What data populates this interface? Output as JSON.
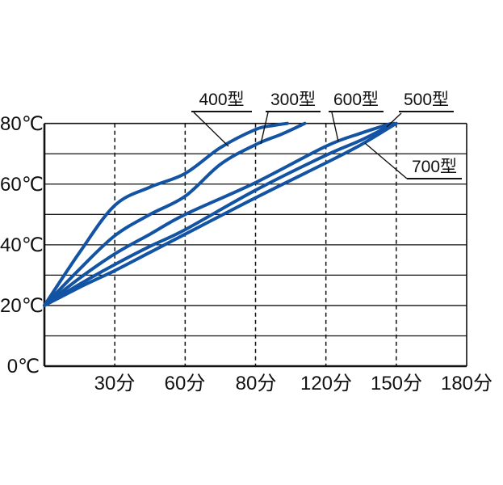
{
  "chart_data": {
    "type": "line",
    "title": "",
    "y_axis": {
      "unit": "℃",
      "tick_labels": [
        "0℃",
        "20℃",
        "40℃",
        "60℃",
        "80℃"
      ],
      "tick_values": [
        0,
        20,
        40,
        60,
        80
      ],
      "range": [
        0,
        80
      ],
      "gridline_step": 10,
      "gridline_style": "solid"
    },
    "x_axis": {
      "unit": "分",
      "tick_labels": [
        "30分",
        "60分",
        "80分",
        "120分",
        "150分",
        "180分"
      ],
      "tick_values": [
        30,
        60,
        80,
        120,
        150,
        180
      ],
      "axis_values": [
        0,
        30,
        60,
        80,
        120,
        150,
        180
      ],
      "spacing": "uniform-per-tick",
      "gridline_style": "dashed"
    },
    "series": [
      {
        "name": "400型",
        "points": [
          [
            0,
            20
          ],
          [
            15,
            37.5
          ],
          [
            30,
            53
          ],
          [
            45,
            59
          ],
          [
            60,
            63.5
          ],
          [
            70,
            72
          ],
          [
            80,
            78
          ],
          [
            90,
            79.3
          ],
          [
            98,
            80
          ]
        ]
      },
      {
        "name": "300型",
        "points": [
          [
            0,
            20
          ],
          [
            15,
            32
          ],
          [
            30,
            43
          ],
          [
            45,
            50
          ],
          [
            60,
            56
          ],
          [
            70,
            66.5
          ],
          [
            80,
            73
          ],
          [
            95,
            76.5
          ],
          [
            108,
            80
          ]
        ]
      },
      {
        "name": "600型",
        "points": [
          [
            0,
            20
          ],
          [
            15,
            29
          ],
          [
            30,
            37
          ],
          [
            45,
            43.5
          ],
          [
            60,
            50
          ],
          [
            80,
            60.5
          ],
          [
            120,
            72.5
          ],
          [
            135,
            76.8
          ],
          [
            148,
            80
          ]
        ]
      },
      {
        "name": "500型",
        "points": [
          [
            0,
            20
          ],
          [
            15,
            27
          ],
          [
            30,
            33.5
          ],
          [
            45,
            39.5
          ],
          [
            60,
            45
          ],
          [
            80,
            58
          ],
          [
            120,
            69.5
          ],
          [
            135,
            74.5
          ],
          [
            149,
            80
          ]
        ]
      },
      {
        "name": "700型",
        "points": [
          [
            0,
            20
          ],
          [
            15,
            26
          ],
          [
            30,
            31.5
          ],
          [
            45,
            37.5
          ],
          [
            60,
            43.5
          ],
          [
            80,
            55.5
          ],
          [
            120,
            67
          ],
          [
            135,
            73
          ],
          [
            150,
            80
          ]
        ]
      }
    ],
    "line_color": "#1253a4",
    "grid_color": "#111111",
    "background_color": "#ffffff",
    "legend_position": "annotated-labels-with-leader-lines"
  }
}
